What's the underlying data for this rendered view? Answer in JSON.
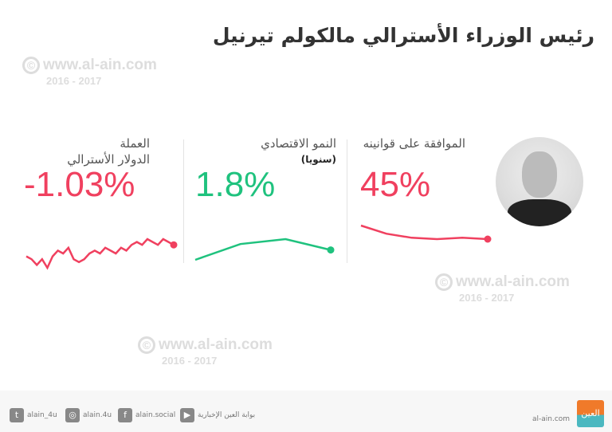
{
  "title": "رئيس الوزراء الأسترالي مالكولم تيرنيل",
  "watermark": {
    "url": "www.al-ain.com",
    "years": "2016 - 2017",
    "symbol": "©"
  },
  "metrics": [
    {
      "label": "الموافقة على قوانينه",
      "value": "45%",
      "color": "#f0405f",
      "sparkline": [
        10,
        7,
        5.5,
        5,
        5.5,
        5
      ]
    },
    {
      "label": "النمو الاقتصادي",
      "sublabel": "(سنويا)",
      "value": "1.8%",
      "color": "#1fc27e",
      "sparkline": [
        1,
        2.6,
        3.1,
        2
      ]
    },
    {
      "label": "العملة",
      "sublabel": "الدولار الأسترالي",
      "value": "-1.03%",
      "color": "#f0405f",
      "sparkline": [
        4,
        3,
        1,
        3,
        0,
        4,
        6,
        5,
        7,
        3,
        2,
        3,
        5,
        6,
        5,
        7,
        6,
        5,
        7,
        6,
        8,
        9,
        8,
        10,
        9,
        8,
        10,
        9,
        8
      ]
    }
  ],
  "footer": {
    "site": "al-ain.com",
    "social": [
      {
        "icon": "twitter-icon",
        "handle": "alain_4u"
      },
      {
        "icon": "instagram-icon",
        "handle": "alain.4u"
      },
      {
        "icon": "facebook-icon",
        "handle": "alain.social"
      },
      {
        "icon": "youtube-icon",
        "handle": "بوابة العين الإخبارية"
      }
    ],
    "logo_text": "العين",
    "logo_color": "#f07a2a"
  }
}
